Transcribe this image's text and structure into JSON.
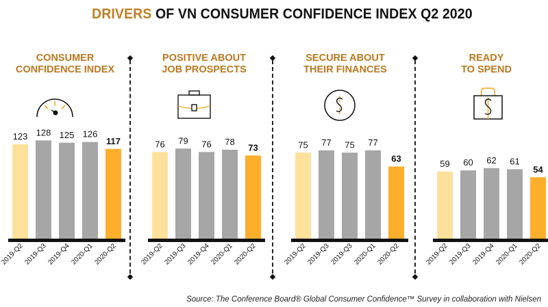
{
  "title": {
    "accent": "DRIVERS",
    "rest": " OF VN CONSUMER CONFIDENCE INDEX Q2 2020"
  },
  "colors": {
    "accent": "#c08025",
    "panel_title": "#b9781f",
    "bar_first": "#fde09b",
    "bar_mid": "#a6a6a6",
    "bar_last": "#fdae2a",
    "baseline": "#111111",
    "icon_accent": "#f5a623"
  },
  "source": "Source: The Conference Board® Global Consumer Confidence™ Survey in collaboration with Nielsen",
  "chart_data": [
    {
      "type": "bar",
      "title": "CONSUMER CONFIDENCE INDEX",
      "title_lines": [
        "CONSUMER",
        "CONFIDENCE INDEX"
      ],
      "icon": "speedometer-icon",
      "categories": [
        "2019-Q2",
        "2019-Q3",
        "2019-Q4",
        "2020-Q1",
        "2020-Q2"
      ],
      "values": [
        123,
        128,
        125,
        126,
        117
      ],
      "highlight_last": true,
      "xlabel": "",
      "ylabel": "",
      "ylim": [
        0,
        128
      ]
    },
    {
      "type": "bar",
      "title": "POSITIVE ABOUT JOB PROSPECTS",
      "title_lines": [
        "POSITIVE ABOUT",
        "JOB PROSPECTS"
      ],
      "icon": "briefcase-icon",
      "categories": [
        "2019-Q2",
        "2019-Q3",
        "2019-Q4",
        "2020-Q1",
        "2020-Q2"
      ],
      "values": [
        76,
        79,
        76,
        78,
        73
      ],
      "highlight_last": true,
      "xlabel": "",
      "ylabel": "",
      "ylim": [
        0,
        79
      ]
    },
    {
      "type": "bar",
      "title": "SECURE ABOUT THEIR FINANCES",
      "title_lines": [
        "SECURE ABOUT",
        "THEIR FINANCES"
      ],
      "icon": "dollar-coin-icon",
      "categories": [
        "2019-Q2",
        "2019-Q3",
        "2019-Q3",
        "2020-Q1",
        "2020-Q2"
      ],
      "values": [
        75,
        77,
        75,
        77,
        63
      ],
      "highlight_last": true,
      "xlabel": "",
      "ylabel": "",
      "ylim": [
        0,
        79
      ]
    },
    {
      "type": "bar",
      "title": "READY TO SPEND",
      "title_lines": [
        "READY",
        "TO SPEND"
      ],
      "icon": "shopping-bag-dollar-icon",
      "categories": [
        "2019-Q2",
        "2019-Q3",
        "2019-Q4",
        "2020-Q1",
        "2020-Q2"
      ],
      "values": [
        59,
        60,
        62,
        61,
        54
      ],
      "highlight_last": true,
      "xlabel": "",
      "ylabel": "",
      "ylim": [
        0,
        79
      ]
    }
  ]
}
